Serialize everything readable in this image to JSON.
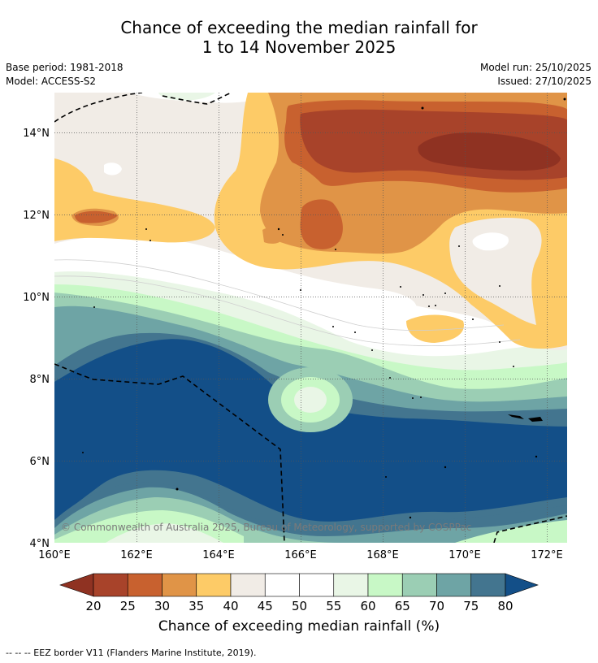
{
  "header": {
    "title_line1": "Chance of exceeding the median rainfall for",
    "title_line2": "1 to 14 November 2025",
    "base_period": "Base period: 1981-2018",
    "model": "Model: ACCESS-S2",
    "model_run": "Model run: 25/10/2025",
    "issued": "Issued: 27/10/2025"
  },
  "map": {
    "lon_ticks": [
      "160°E",
      "162°E",
      "164°E",
      "166°E",
      "168°E",
      "170°E",
      "172°E"
    ],
    "lat_ticks": [
      "14°N",
      "12°N",
      "10°N",
      "8°N",
      "6°N",
      "4°N"
    ],
    "copyright": "© Commonwealth of Australia 2025, Bureau of Meteorology, supported by COSPPac"
  },
  "colorbar": {
    "ticks": [
      "20",
      "25",
      "30",
      "35",
      "40",
      "45",
      "50",
      "55",
      "60",
      "65",
      "70",
      "75",
      "80"
    ],
    "colors": [
      "#a8432a",
      "#c8612f",
      "#e09447",
      "#fdcb67",
      "#f1ece6",
      "#ffffff",
      "#ffffff",
      "#e9f6e6",
      "#c8f8c6",
      "#9bceb4",
      "#6ea4a5",
      "#43758f"
    ],
    "low_color": "#8f3222",
    "high_color": "#134f88",
    "title": "Chance of exceeding median rainfall (%)"
  },
  "footer": {
    "legend_text": "--  --  -- EEZ border V11 (Flanders Marine Institute, 2019)."
  }
}
